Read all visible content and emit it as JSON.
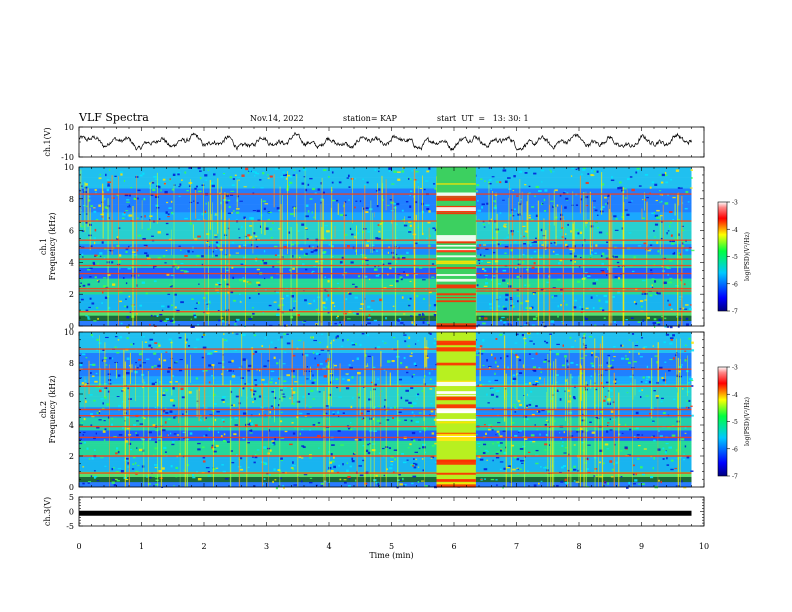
{
  "header": {
    "title": "VLF Spectra",
    "date": "Nov.14, 2022",
    "station": "station= KAP",
    "start": "start  UT  =   13: 30: 1"
  },
  "chart_data": [
    {
      "id": "ch1-waveform",
      "type": "line",
      "ylabel": "ch.1(V)",
      "ylim": [
        -10,
        10
      ],
      "yticks": [
        "10",
        "-10"
      ],
      "xlim": [
        0,
        10
      ],
      "data_extent_min": 9.8,
      "series": [
        {
          "color": "#000000"
        }
      ]
    },
    {
      "id": "ch1-spectrogram",
      "type": "heatmap",
      "ylabel_top": "ch.1",
      "ylabel": "Frequency  (kHz)",
      "ylim": [
        0,
        10
      ],
      "yticks": [
        "0",
        "2",
        "4",
        "6",
        "8",
        "10"
      ],
      "xlim": [
        0,
        10
      ],
      "data_extent_min": 9.8,
      "burst_window_min": [
        5.72,
        6.35
      ],
      "band_lines_khz": [
        0.9,
        2.2,
        2.35,
        3.3,
        3.8,
        4.2,
        4.9,
        5.4,
        6.6,
        8.3
      ],
      "colorbar": {
        "min": -7,
        "max": -3,
        "ticks": [
          "-3",
          "-4",
          "-5",
          "-6",
          "-7"
        ],
        "label": "log(PSD)(V²/Hz)"
      }
    },
    {
      "id": "ch2-spectrogram",
      "type": "heatmap",
      "ylabel_top": "ch.2",
      "ylabel": "Frequency  (kHz)",
      "ylim": [
        0,
        10
      ],
      "yticks": [
        "0",
        "2",
        "4",
        "6",
        "8",
        "10"
      ],
      "xlim": [
        0,
        10
      ],
      "data_extent_min": 9.8,
      "burst_window_min": [
        5.72,
        6.35
      ],
      "band_lines_khz": [
        0.9,
        2.0,
        3.2,
        3.9,
        4.6,
        5.0,
        6.5,
        7.6,
        8.9
      ],
      "colorbar": {
        "min": -7,
        "max": -3,
        "ticks": [
          "-3",
          "-4",
          "-5",
          "-6",
          "-7"
        ],
        "label": "log(PSD)(V²/Hz)"
      }
    },
    {
      "id": "ch3-waveform",
      "type": "line",
      "ylabel": "ch.3(V)",
      "ylim": [
        -5,
        5
      ],
      "yticks": [
        "5",
        "0",
        "-5"
      ],
      "xlim": [
        0,
        10
      ],
      "xticks": [
        "0",
        "1",
        "2",
        "3",
        "4",
        "5",
        "6",
        "7",
        "8",
        "9",
        "10"
      ],
      "xlabel": "Time  (min)",
      "data_extent_min": 9.8,
      "series": [
        {
          "color": "#000000",
          "level_v": -0.6
        }
      ]
    }
  ]
}
